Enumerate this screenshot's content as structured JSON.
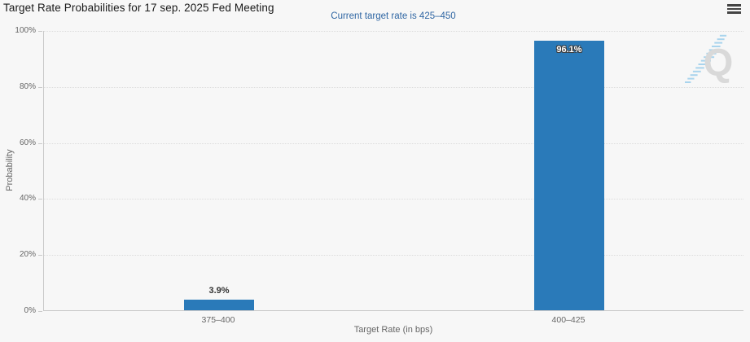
{
  "chart_data": {
    "type": "bar",
    "title": "Target Rate Probabilities for 17 sep. 2025 Fed Meeting",
    "subtitle": "Current target rate is 425–450",
    "categories": [
      "375–400",
      "400–425"
    ],
    "values": [
      3.9,
      96.1
    ],
    "value_labels": [
      "3.9%",
      "96.1%"
    ],
    "xlabel": "Target Rate (in bps)",
    "ylabel": "Probability",
    "ylim": [
      0,
      100
    ],
    "yticks": [
      "0%",
      "20%",
      "40%",
      "60%",
      "80%",
      "100%"
    ],
    "grid": "horizontal-dotted",
    "legend": "none"
  },
  "menu": {
    "icon": "hamburger-menu-icon"
  },
  "watermark": {
    "letter": "Q"
  },
  "colors": {
    "background": "#f7f7f7",
    "bar": "#2a7ab9",
    "title_text": "#1a1a1a",
    "subtitle_text": "#2f66a3",
    "axis_text": "#666666",
    "grid_line": "#dcdcdc",
    "axis_line": "#c9c9c9",
    "bar_label_inside": "#ffffff",
    "bar_label_outside": "#333333",
    "watermark_letter": "#d9d9d9",
    "watermark_dash": "#a9d4ed",
    "menu_icon": "#444444"
  }
}
